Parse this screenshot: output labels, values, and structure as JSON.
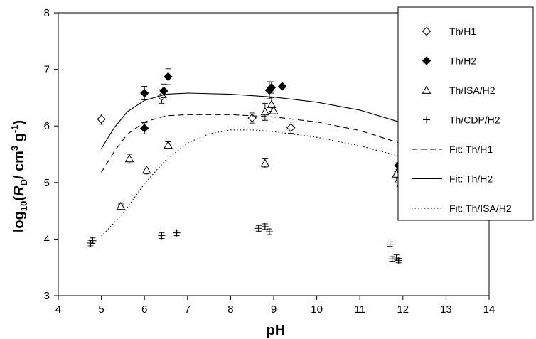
{
  "chart_data": {
    "type": "scatter",
    "xlabel": "pH",
    "ylabel": {
      "prefix": "log",
      "sub": "10",
      "open": "(",
      "italic": "R",
      "sub2": "D",
      "mid": "/ cm",
      "sup": "3",
      "mid2": " g",
      "sup2": "-1",
      "close": ")"
    },
    "xlim": [
      4,
      14
    ],
    "ylim": [
      3,
      8
    ],
    "xticks": [
      4,
      5,
      6,
      7,
      8,
      9,
      10,
      11,
      12,
      13,
      14
    ],
    "yticks": [
      3,
      4,
      5,
      6,
      7,
      8
    ],
    "grid": false,
    "legend_position": "right-outside",
    "series": [
      {
        "name": "Th/H1",
        "kind": "points",
        "marker": "diamond-open",
        "points": [
          [
            5.0,
            6.12
          ],
          [
            6.4,
            6.52
          ],
          [
            8.5,
            6.14
          ],
          [
            9.4,
            5.97
          ],
          [
            11.9,
            5.18
          ],
          [
            12.0,
            5.22
          ]
        ],
        "err": [
          0.09,
          0.12,
          0.09,
          0.1,
          0.05,
          0.05
        ]
      },
      {
        "name": "Th/H2",
        "kind": "points",
        "marker": "diamond-filled",
        "points": [
          [
            6.0,
            5.96
          ],
          [
            6.0,
            6.58
          ],
          [
            6.45,
            6.62
          ],
          [
            6.55,
            6.87
          ],
          [
            8.9,
            6.63
          ],
          [
            8.95,
            6.68
          ],
          [
            9.2,
            6.7
          ],
          [
            11.9,
            5.3
          ],
          [
            11.95,
            5.25
          ],
          [
            12.0,
            5.2
          ],
          [
            11.9,
            5.12
          ],
          [
            12.0,
            5.08
          ]
        ],
        "err": [
          0.1,
          0.12,
          0.12,
          0.14,
          0.15,
          0.1,
          0.0,
          0.05,
          0.05,
          0.05,
          0.05,
          0.05
        ]
      },
      {
        "name": "Th/ISA/H2",
        "kind": "points",
        "marker": "triangle-open",
        "points": [
          [
            5.45,
            4.58
          ],
          [
            5.65,
            5.42
          ],
          [
            6.05,
            5.22
          ],
          [
            6.55,
            5.66
          ],
          [
            8.8,
            5.34
          ],
          [
            8.8,
            6.25
          ],
          [
            8.95,
            6.38
          ],
          [
            9.0,
            6.27
          ],
          [
            11.85,
            5.15
          ],
          [
            11.95,
            4.98
          ],
          [
            11.9,
            5.05
          ]
        ],
        "err": [
          0.04,
          0.08,
          0.07,
          0.06,
          0.08,
          0.15,
          0.12,
          0.0,
          0.05,
          0.04,
          0.04
        ]
      },
      {
        "name": "Th/CDP/H2",
        "kind": "points",
        "marker": "plus",
        "points": [
          [
            4.75,
            3.93
          ],
          [
            4.8,
            3.97
          ],
          [
            6.4,
            4.06
          ],
          [
            6.75,
            4.11
          ],
          [
            8.65,
            4.19
          ],
          [
            8.8,
            4.22
          ],
          [
            8.9,
            4.13
          ],
          [
            11.7,
            3.91
          ],
          [
            11.75,
            3.65
          ],
          [
            11.85,
            3.68
          ],
          [
            11.9,
            3.62
          ]
        ],
        "err": [
          0.05,
          0.05,
          0.05,
          0.05,
          0.05,
          0.05,
          0.05,
          0.04,
          0.04,
          0.04,
          0.04
        ]
      },
      {
        "name": "Fit: Th/H1",
        "kind": "line",
        "dash": "8,5",
        "points": [
          [
            5.0,
            5.18
          ],
          [
            5.3,
            5.55
          ],
          [
            5.6,
            5.85
          ],
          [
            6.0,
            6.07
          ],
          [
            6.5,
            6.18
          ],
          [
            7.0,
            6.2
          ],
          [
            8.0,
            6.2
          ],
          [
            9.0,
            6.16
          ],
          [
            10.0,
            6.07
          ],
          [
            11.0,
            5.92
          ],
          [
            12.0,
            5.68
          ],
          [
            12.5,
            5.5
          ],
          [
            13.0,
            5.32
          ]
        ]
      },
      {
        "name": "Fit: Th/H2",
        "kind": "line",
        "dash": "",
        "points": [
          [
            5.0,
            5.6
          ],
          [
            5.3,
            5.97
          ],
          [
            5.6,
            6.25
          ],
          [
            6.0,
            6.45
          ],
          [
            6.5,
            6.56
          ],
          [
            7.0,
            6.58
          ],
          [
            8.0,
            6.56
          ],
          [
            9.0,
            6.51
          ],
          [
            10.0,
            6.42
          ],
          [
            11.0,
            6.28
          ],
          [
            12.0,
            6.05
          ],
          [
            12.5,
            5.9
          ],
          [
            13.0,
            5.68
          ]
        ]
      },
      {
        "name": "Fit: Th/ISA/H2",
        "kind": "line",
        "dash": "1.5,3",
        "points": [
          [
            5.0,
            4.05
          ],
          [
            5.5,
            4.45
          ],
          [
            6.0,
            4.98
          ],
          [
            6.5,
            5.4
          ],
          [
            7.0,
            5.7
          ],
          [
            7.5,
            5.86
          ],
          [
            8.0,
            5.93
          ],
          [
            8.5,
            5.93
          ],
          [
            9.0,
            5.9
          ],
          [
            10.0,
            5.8
          ],
          [
            11.0,
            5.65
          ],
          [
            12.0,
            5.45
          ],
          [
            13.0,
            5.17
          ]
        ]
      }
    ]
  }
}
